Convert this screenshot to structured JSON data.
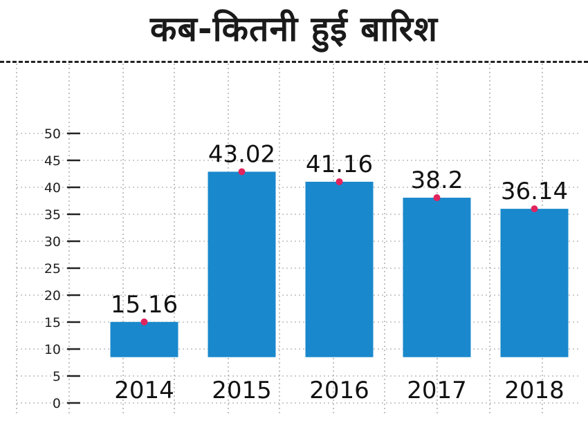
{
  "chart_data": {
    "type": "bar",
    "title": "कब-कितनी हुई बारिश",
    "categories": [
      "2014",
      "2015",
      "2016",
      "2017",
      "2018"
    ],
    "values": [
      15.16,
      43.02,
      41.16,
      38.2,
      36.14
    ],
    "data_labels": [
      "15.16",
      "43.02",
      "41.16",
      "38.2",
      "36.14"
    ],
    "yticks": [
      0,
      5,
      10,
      15,
      20,
      25,
      30,
      35,
      40,
      45,
      50
    ],
    "ylim": [
      0,
      50
    ],
    "grid": true,
    "xlabel": "",
    "ylabel": "",
    "colors": {
      "bar": "#1a88cc",
      "marker": "#e0245e",
      "grid": "#9a9a9a",
      "axis": "#222222"
    }
  }
}
